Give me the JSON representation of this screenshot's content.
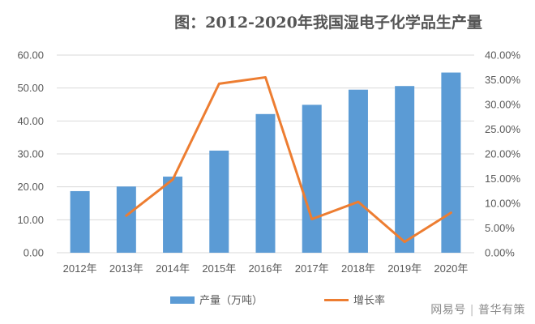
{
  "chart_data": {
    "type": "bar+line",
    "title": "图：2012-2020年我国湿电子化学品生产量",
    "categories": [
      "2012年",
      "2013年",
      "2014年",
      "2015年",
      "2016年",
      "2017年",
      "2018年",
      "2019年",
      "2020年"
    ],
    "series": [
      {
        "name": "产量（万吨）",
        "type": "bar",
        "axis": "left",
        "values": [
          18.7,
          20.1,
          23.1,
          31.0,
          42.1,
          44.9,
          49.5,
          50.6,
          54.7
        ]
      },
      {
        "name": "增长率",
        "type": "line",
        "axis": "right",
        "values": [
          null,
          0.075,
          0.148,
          0.342,
          0.355,
          0.068,
          0.103,
          0.022,
          0.081
        ]
      }
    ],
    "y_left": {
      "min": 0,
      "max": 60,
      "ticks": [
        "0.00",
        "10.00",
        "20.00",
        "30.00",
        "40.00",
        "50.00",
        "60.00"
      ]
    },
    "y_right": {
      "min": 0,
      "max": 0.4,
      "ticks": [
        "0.00%",
        "5.00%",
        "10.00%",
        "15.00%",
        "20.00%",
        "25.00%",
        "30.00%",
        "35.00%",
        "40.00%"
      ]
    },
    "grid": true,
    "legend_position": "bottom",
    "colors": {
      "bar": "#5b9bd5",
      "line": "#ed7d31",
      "grid": "#d9d9d9"
    }
  },
  "watermark": {
    "source": "网易号",
    "author": "普华有策"
  }
}
